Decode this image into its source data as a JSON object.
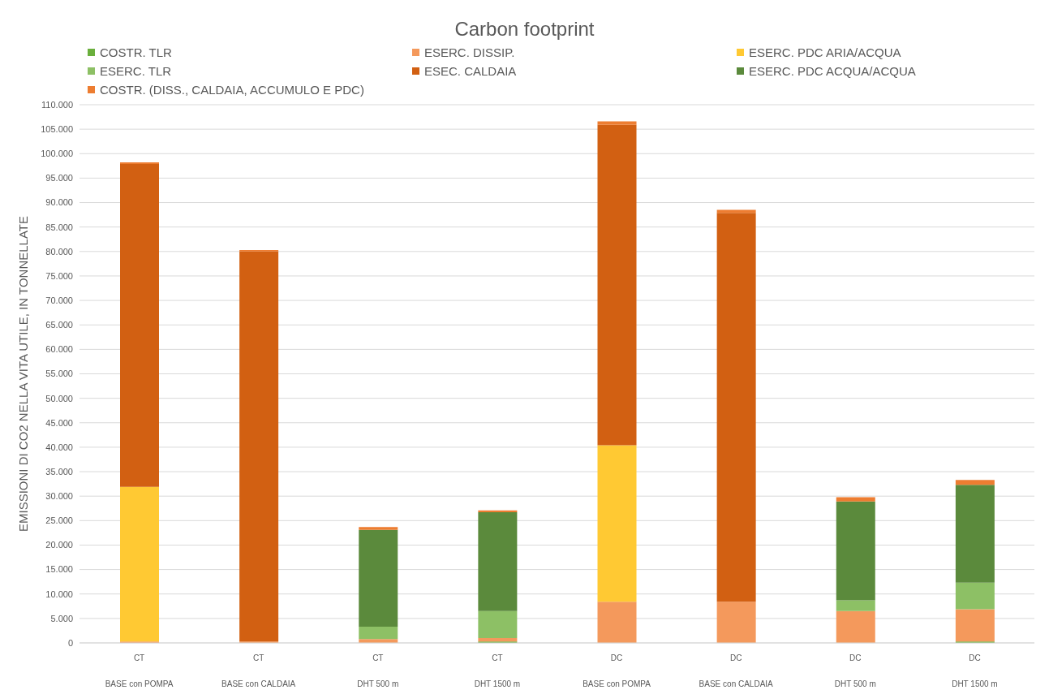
{
  "chart_data": {
    "type": "bar",
    "title": "Carbon footprint",
    "ylabel": "EMISSIONI DI CO2 NELLA VITA UTILE, IN TONNELLATE",
    "stacked": true,
    "legend": "top",
    "grid": "y",
    "categories": [
      "CT\nBASE con POMPA",
      "CT\nBASE con CALDAIA",
      "CT\nDHT 500 m",
      "CT\nDHT 1500 m",
      "DC\nBASE con POMPA",
      "DC\nBASE con CALDAIA",
      "DC\nDHT 500 m",
      "DC\nDHT 1500 m"
    ],
    "series": [
      {
        "name": "COSTR. TLR",
        "color": "#6aaf3c",
        "values": [
          0,
          0,
          0,
          300,
          0,
          0,
          0,
          300
        ]
      },
      {
        "name": "ESERC. DISSIP.",
        "color": "#f4995c",
        "values": [
          300,
          300,
          800,
          700,
          8400,
          8400,
          6500,
          6600
        ]
      },
      {
        "name": "ESERC. PDC ARIA/ACQUA",
        "color": "#ffc933",
        "values": [
          31600,
          0,
          0,
          0,
          32000,
          0,
          0,
          0
        ]
      },
      {
        "name": "ESERC. TLR",
        "color": "#8dc065",
        "values": [
          0,
          0,
          2500,
          5500,
          0,
          0,
          2200,
          5400
        ]
      },
      {
        "name": "ESEC. CALDAIA",
        "color": "#d26012",
        "values": [
          66000,
          79700,
          0,
          0,
          65500,
          79500,
          0,
          0
        ]
      },
      {
        "name": "ESERC. PDC ACQUA/ACQUA",
        "color": "#5b8a3c",
        "values": [
          0,
          0,
          19800,
          20200,
          0,
          0,
          20200,
          20000
        ]
      },
      {
        "name": "COSTR. (DISS., CALDAIA, ACCUMULO E PDC)",
        "color": "#ed7d31",
        "values": [
          300,
          300,
          600,
          400,
          700,
          600,
          900,
          1000
        ]
      }
    ],
    "ylim": [
      0,
      110000
    ],
    "yticks": [
      0,
      {
        "value": 5000,
        "label": "5.000"
      },
      {
        "value": 10000,
        "label": "10.000"
      },
      {
        "value": 15000,
        "label": "15.000"
      },
      {
        "value": 20000,
        "label": "20.000"
      },
      {
        "value": 25000,
        "label": "25.000"
      },
      {
        "value": 30000,
        "label": "30.000"
      },
      {
        "value": 35000,
        "label": "35.000"
      },
      {
        "value": 40000,
        "label": "40.000"
      },
      {
        "value": 45000,
        "label": "45.000"
      },
      {
        "value": 50000,
        "label": "50.000"
      },
      {
        "value": 55000,
        "label": "55.000"
      },
      {
        "value": 60000,
        "label": "60.000"
      },
      {
        "value": 65000,
        "label": "65.000"
      },
      {
        "value": 70000,
        "label": "70.000"
      },
      {
        "value": 75000,
        "label": "75.000"
      },
      {
        "value": 80000,
        "label": "80.000"
      },
      {
        "value": 85000,
        "label": "85.000"
      },
      {
        "value": 90000,
        "label": "90.000"
      },
      {
        "value": 95000,
        "label": "95.000"
      },
      {
        "value": 100000,
        "label": "100.000"
      },
      {
        "value": 105000,
        "label": "105.000"
      },
      {
        "value": 110000,
        "label": "110.000"
      }
    ]
  }
}
